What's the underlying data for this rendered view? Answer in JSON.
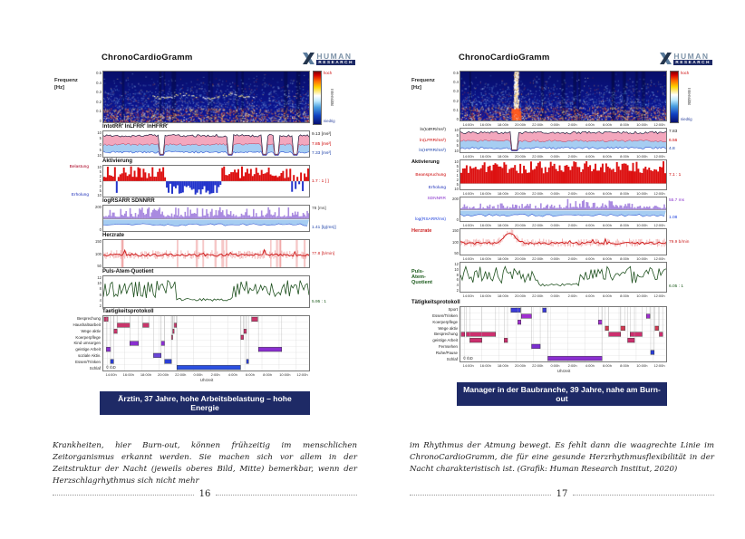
{
  "pages": [
    {
      "page_number": "16",
      "caption": "Ärztin, 37 Jahre, hohe Arbeitsbelastung – hohe Energie",
      "body_text": "Krankheiten, hier Burn-out, können frühzeitig im menschlichen Zeitorganismus erkannt werden. Sie machen sich vor allem in der Zeitstruktur der Nacht (jeweils oberes Bild, Mitte) bemerkbar, wenn der Herzschlagrhythmus sich nicht mehr",
      "figure": {
        "title": "ChronoCardioGramm",
        "logo_line1": "HUMAN",
        "logo_line2": "RESEARCH",
        "xticks": [
          "14:00h",
          "16:00h",
          "18:00h",
          "20:00h",
          "22:00h",
          "0:00h",
          "2:00h",
          "4:00h",
          "6:00h",
          "8:00h",
          "10:00h",
          "12:00h"
        ],
        "spectrogram": {
          "ylabel1": "Frequenz",
          "ylabel2": "[Hz]",
          "yticks": [
            "0.5",
            "0.4",
            "0.3",
            "0.2",
            "0.1",
            "0"
          ],
          "colorbar_label": "Intensität",
          "colorbar_top": "hoch",
          "colorbar_bottom": "niedrig",
          "night_rsa_line": true,
          "stress_spike": false
        },
        "panels": {
          "bands": {
            "title": "lntotRR'  lnLFRR'  lnHFRR'",
            "yticks": [
              "10",
              "5",
              "0",
              "5",
              "10"
            ],
            "values": [
              {
                "text": "9.13 [ms²]",
                "color": "#222222"
              },
              {
                "text": "7.85 [ms²]",
                "color": "#cc0000"
              },
              {
                "text": "7.33 [ms²]",
                "color": "#1a3fa8"
              }
            ]
          },
          "activation": {
            "title": "Aktivierung",
            "label_top": {
              "text": "Belastung",
              "color": "#aa0022"
            },
            "label_bottom": {
              "text": "Erholung",
              "color": "#2233bb"
            },
            "yticks": [
              "10",
              "5",
              "2",
              "1",
              "2",
              "5",
              "10"
            ],
            "values": [
              {
                "text": "1.7 : 1  [ ]",
                "color": "#cc0000"
              }
            ]
          },
          "rsa": {
            "title": "logRSARR  SDNNRR",
            "yticks": [
              "200",
              "0"
            ],
            "values": [
              {
                "text": "78 [ms]",
                "color": "#444444"
              },
              {
                "text": "1.41 [lg(ms)]",
                "color": "#2244aa"
              }
            ]
          },
          "heart": {
            "title": "Herzrate",
            "yticks": [
              "150",
              "100",
              "50"
            ],
            "values": [
              {
                "text": "77.8 [b/min]",
                "color": "#cc2222"
              }
            ]
          },
          "paq": {
            "title": "Puls-Atem-Quotient",
            "yticks": [
              "12",
              "10",
              "8",
              "6",
              "4",
              "2"
            ],
            "values": [
              {
                "text": "5.95 : 1",
                "color": "#1d5c1d"
              }
            ]
          },
          "activity": {
            "title": "Taetigkeitsprotokoll",
            "xlabel": "Uhrzeit",
            "copyright": "© IbD",
            "rows": [
              "Besprechung",
              "Haushaltsarbeit",
              "Wege aktiv",
              "Koerperpflege",
              "Kind umsorgen",
              "geistige Arbeit",
              "soziale Aktiv.",
              "Essen/Trinken",
              "Schlaf"
            ],
            "segments": [
              [
                {
                  "f0": 0.004,
                  "f1": 0.023,
                  "c": "#c9366b"
                },
                {
                  "f0": 0.721,
                  "f1": 0.75,
                  "c": "#c9366b"
                }
              ],
              [
                {
                  "f0": 0.067,
                  "f1": 0.129,
                  "c": "#c9366b"
                },
                {
                  "f0": 0.192,
                  "f1": 0.221,
                  "c": "#c9366b"
                },
                {
                  "f0": 0.344,
                  "f1": 0.356,
                  "c": "#c9366b"
                }
              ],
              [
                {
                  "f0": 0.052,
                  "f1": 0.067,
                  "c": "#c9366b"
                },
                {
                  "f0": 0.337,
                  "f1": 0.344,
                  "c": "#c9366b"
                },
                {
                  "f0": 0.683,
                  "f1": 0.696,
                  "c": "#c9366b"
                }
              ],
              [
                {
                  "f0": 0.331,
                  "f1": 0.337,
                  "c": "#c9366b"
                },
                {
                  "f0": 0.669,
                  "f1": 0.681,
                  "c": "#c9366b"
                }
              ],
              [
                {
                  "f0": 0.129,
                  "f1": 0.171,
                  "c": "#8a2fd0"
                },
                {
                  "f0": 0.281,
                  "f1": 0.298,
                  "c": "#8a2fd0"
                }
              ],
              [
                {
                  "f0": 0.015,
                  "f1": 0.035,
                  "c": "#8a2fd0"
                },
                {
                  "f0": 0.754,
                  "f1": 0.867,
                  "c": "#8a2fd0"
                }
              ],
              [
                {
                  "f0": 0.244,
                  "f1": 0.281,
                  "c": "#6a46d8"
                }
              ],
              [
                {
                  "f0": 0.035,
                  "f1": 0.05,
                  "c": "#2b3fd6"
                },
                {
                  "f0": 0.298,
                  "f1": 0.331,
                  "c": "#2b3fd6"
                },
                {
                  "f0": 0.696,
                  "f1": 0.706,
                  "c": "#2b3fd6"
                }
              ],
              [
                {
                  "f0": 0.358,
                  "f1": 0.667,
                  "c": "#2b50e0"
                }
              ]
            ]
          }
        }
      }
    },
    {
      "page_number": "17",
      "caption": "Manager in der Baubranche, 39 Jahre, nahe am Burn-out",
      "body_text": "im Rhythmus der Atmung bewegt. Es fehlt dann die waagrechte Linie im ChronoCardioGramm, die für eine gesunde Herzrhythmusflexibilität in der Nacht charakteristisch ist. (Grafik: Human Research Institut, 2020)",
      "figure": {
        "title": "ChronoCardioGramm",
        "logo_line1": "HUMAN",
        "logo_line2": "RESEARCH",
        "xticks": [
          "14:00h",
          "16:00h",
          "18:00h",
          "20:00h",
          "22:00h",
          "0:00h",
          "2:00h",
          "4:00h",
          "6:00h",
          "8:00h",
          "10:00h",
          "12:00h"
        ],
        "spectrogram": {
          "ylabel1": "Frequenz",
          "ylabel2": "[Hz]",
          "yticks": [
            "0.5",
            "0.4",
            "0.3",
            "0.2",
            "0.1",
            "0"
          ],
          "colorbar_label": "Intensität",
          "colorbar_top": "hoch",
          "colorbar_bottom": "niedrig",
          "night_rsa_line": false,
          "stress_spike": true
        },
        "panels": {
          "bands": {
            "title": "",
            "labels": [
              {
                "text": "ln(totRR/ms²)",
                "color": "#222222"
              },
              {
                "text": "ln(LFRR/ms²)",
                "color": "#cc0000"
              },
              {
                "text": "ln(HFRR/ms²)",
                "color": "#1a3fa8"
              }
            ],
            "yticks": [
              "10",
              "5",
              "0",
              "5",
              "10"
            ],
            "values": [
              {
                "text": "7.83",
                "color": "#222222"
              },
              {
                "text": "6.56",
                "color": "#cc0000"
              },
              {
                "text": "4.8",
                "color": "#1a3fa8"
              }
            ]
          },
          "activation": {
            "title": "Aktivierung",
            "label_top": {
              "text": "Beanspruchung",
              "color": "#cc0000"
            },
            "label_bottom": {
              "text": "Erholung",
              "color": "#2233bb"
            },
            "yticks": [
              "10",
              "5",
              "2",
              "1",
              "2",
              "5",
              "10"
            ],
            "values": [
              {
                "text": "7.1 : 1",
                "color": "#cc0000"
              }
            ]
          },
          "rsa": {
            "title": "",
            "labels": [
              {
                "text": "SDNNRR",
                "color": "#8833cc"
              },
              {
                "text": "log(RSARR/ms)",
                "color": "#2244dd"
              }
            ],
            "yticks": [
              "200",
              "0"
            ],
            "values": [
              {
                "text": "55.7 ms",
                "color": "#8833cc"
              },
              {
                "text": "1.08",
                "color": "#2244dd"
              }
            ]
          },
          "heart": {
            "title": "Herzrate",
            "yticks": [
              "150",
              "100",
              "50"
            ],
            "values": [
              {
                "text": "79.9 b/min",
                "color": "#cc2222"
              }
            ]
          },
          "paq": {
            "title_lines": [
              "Puls-",
              "Atem-",
              "Quotient"
            ],
            "yticks": [
              "12",
              "10",
              "8",
              "6",
              "4",
              "2"
            ],
            "values": [
              {
                "text": "6.05 : 1",
                "color": "#1d5c1d"
              }
            ]
          },
          "activity": {
            "title": "Tätigkeitsprotokoll",
            "xlabel": "Uhrzeit",
            "copyright": "© IbD",
            "rows": [
              "Sport",
              "Essen/Trinken",
              "Koerperpflege",
              "Wege aktiv",
              "Besprechung",
              "geistige Arbeit",
              "Fernsehen",
              "Ruhe/Pause",
              "Schlaf"
            ],
            "segments": [
              [
                {
                  "f0": 0.246,
                  "f1": 0.292,
                  "c": "#3b3bd8"
                },
                {
                  "f0": 0.4,
                  "f1": 0.417,
                  "c": "#3b3bd8"
                }
              ],
              [
                {
                  "f0": 0.296,
                  "f1": 0.346,
                  "c": "#a02fd0"
                },
                {
                  "f0": 0.904,
                  "f1": 0.921,
                  "c": "#a02fd0"
                }
              ],
              [
                {
                  "f0": 0.279,
                  "f1": 0.294,
                  "c": "#a02fd0"
                },
                {
                  "f0": 0.671,
                  "f1": 0.688,
                  "c": "#a02fd0"
                }
              ],
              [
                {
                  "f0": 0.704,
                  "f1": 0.721,
                  "c": "#d23a52"
                },
                {
                  "f0": 0.779,
                  "f1": 0.8,
                  "c": "#d23a52"
                },
                {
                  "f0": 0.946,
                  "f1": 0.963,
                  "c": "#d23a52"
                }
              ],
              [
                {
                  "f0": 0.004,
                  "f1": 0.021,
                  "c": "#cc2f6e"
                },
                {
                  "f0": 0.029,
                  "f1": 0.171,
                  "c": "#cc2f6e"
                },
                {
                  "f0": 0.721,
                  "f1": 0.779,
                  "c": "#cc2f6e"
                },
                {
                  "f0": 0.825,
                  "f1": 0.883,
                  "c": "#cc2f6e"
                },
                {
                  "f0": 0.967,
                  "f1": 0.983,
                  "c": "#cc2f6e"
                }
              ],
              [
                {
                  "f0": 0.046,
                  "f1": 0.104,
                  "c": "#cc2f6e"
                },
                {
                  "f0": 0.213,
                  "f1": 0.229,
                  "c": "#cc2f6e"
                },
                {
                  "f0": 0.813,
                  "f1": 0.846,
                  "c": "#cc2f6e"
                }
              ],
              [
                {
                  "f0": 0.346,
                  "f1": 0.388,
                  "c": "#7b2fd0"
                }
              ],
              [
                {
                  "f0": 0.925,
                  "f1": 0.942,
                  "c": "#2b3fd6"
                }
              ],
              [
                {
                  "f0": 0.425,
                  "f1": 0.688,
                  "c": "#8a2fd0"
                }
              ]
            ]
          }
        }
      }
    }
  ]
}
